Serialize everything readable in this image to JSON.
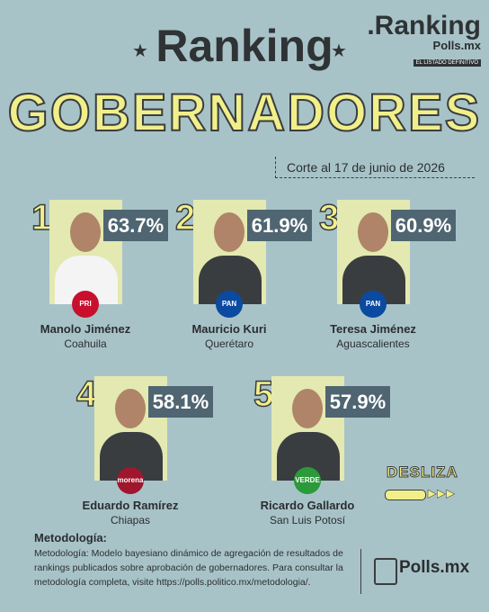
{
  "header": {
    "title": "Ranking",
    "subtitle": "GOBERNADORES",
    "logo": {
      "brand": ".Ranking",
      "site": "Polls.mx",
      "tagline": "EL LISTADO DEFINITIVO"
    },
    "date": "Corte al 17 de junio de 2026"
  },
  "items": [
    {
      "rank": "1",
      "percent": "63.7%",
      "name": "Manolo Jiménez",
      "state": "Coahuila",
      "party": "PRI"
    },
    {
      "rank": "2",
      "percent": "61.9%",
      "name": "Mauricio Kuri",
      "state": "Querétaro",
      "party": "PAN"
    },
    {
      "rank": "3",
      "percent": "60.9%",
      "name": "Teresa Jiménez",
      "state": "Aguascalientes",
      "party": "PAN"
    },
    {
      "rank": "4",
      "percent": "58.1%",
      "name": "Eduardo Ramírez",
      "state": "Chiapas",
      "party": "morena"
    },
    {
      "rank": "5",
      "percent": "57.9%",
      "name": "Ricardo Gallardo",
      "state": "San Luis Potosí",
      "party": "VERDE"
    }
  ],
  "swipe": "DESLIZA",
  "footer": {
    "heading": "Metodología:",
    "lines": [
      "Metodología: Modelo bayesiano dinámico de agregación de resultados de",
      "rankings publicados sobre aprobación de gobernadores. Para consultar la",
      "metodología completa, visite https://polls.politico.mx/metodologia/."
    ],
    "logo": "Polls.mx"
  }
}
